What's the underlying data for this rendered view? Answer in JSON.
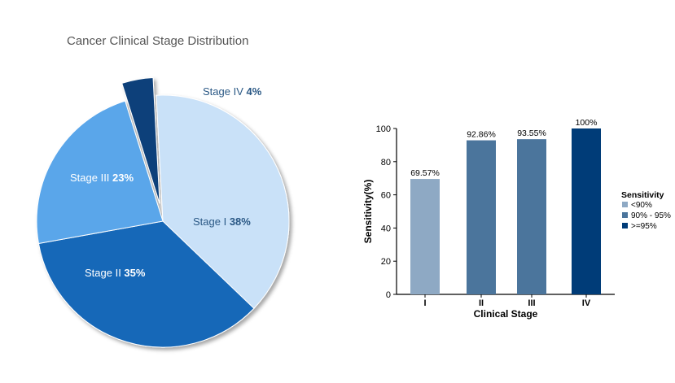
{
  "pie_title": "Cancer Clinical Stage Distribution",
  "chart_data": [
    {
      "type": "pie",
      "title": "Cancer Clinical Stage Distribution",
      "slices": [
        {
          "label": "Stage I",
          "value": 38,
          "pct_label": "38%",
          "color": "#c9e1f8",
          "label_color": "#2a5885"
        },
        {
          "label": "Stage II",
          "value": 35,
          "pct_label": "35%",
          "color": "#1567b8",
          "label_color": "#ffffff"
        },
        {
          "label": "Stage III",
          "value": 23,
          "pct_label": "23%",
          "color": "#5aa6ea",
          "label_color": "#ffffff"
        },
        {
          "label": "Stage IV",
          "value": 4,
          "pct_label": "4%",
          "color": "#0b3f7a",
          "label_color": "#2a5885",
          "exploded": true
        }
      ]
    },
    {
      "type": "bar",
      "categories": [
        "I",
        "II",
        "III",
        "IV"
      ],
      "values": [
        69.57,
        92.86,
        93.55,
        100
      ],
      "data_labels": [
        "69.57%",
        "92.86%",
        "93.55%",
        "100%"
      ],
      "bar_colors": [
        "#8ea9c4",
        "#4b759c",
        "#4b759c",
        "#003c78"
      ],
      "xlabel": "Clinical Stage",
      "ylabel": "Sensitivity(%)",
      "ylim": [
        0,
        100
      ],
      "yticks": [
        0,
        20,
        40,
        60,
        80,
        100
      ],
      "grid": false,
      "legend": {
        "title": "Sensitivity",
        "placement": "right",
        "entries": [
          {
            "label": "<90%",
            "color": "#8ea9c4"
          },
          {
            "label": "90% - 95%",
            "color": "#4b759c"
          },
          {
            "label": ">=95%",
            "color": "#003c78"
          }
        ]
      }
    }
  ]
}
